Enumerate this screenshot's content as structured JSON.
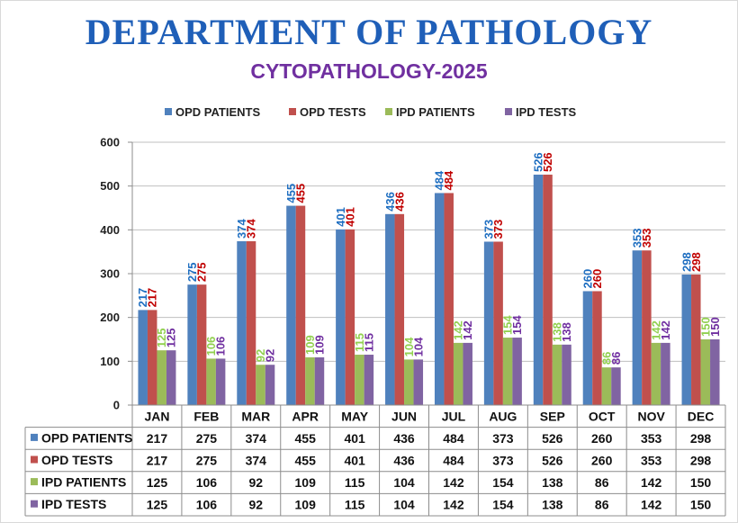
{
  "page": {
    "title": "DEPARTMENT OF PATHOLOGY",
    "subtitle": "CYTOPATHOLOGY-2025"
  },
  "chart_data": {
    "type": "bar",
    "title": "CYTOPATHOLOGY-2025",
    "xlabel": "",
    "ylabel": "",
    "ylim": [
      0,
      600
    ],
    "yticks": [
      0,
      100,
      200,
      300,
      400,
      500,
      600
    ],
    "grid": true,
    "legend": "top",
    "data_table": true,
    "categories": [
      "JAN",
      "FEB",
      "MAR",
      "APR",
      "MAY",
      "JUN",
      "JUL",
      "AUG",
      "SEP",
      "OCT",
      "NOV",
      "DEC"
    ],
    "series": [
      {
        "name": "OPD PATIENTS",
        "color": "#4f81bd",
        "label_color": "#1f6fc1",
        "values": [
          217,
          275,
          374,
          455,
          401,
          436,
          484,
          373,
          526,
          260,
          353,
          298
        ]
      },
      {
        "name": "OPD TESTS",
        "color": "#c0504d",
        "label_color": "#c00000",
        "values": [
          217,
          275,
          374,
          455,
          401,
          436,
          484,
          373,
          526,
          260,
          353,
          298
        ]
      },
      {
        "name": "IPD PATIENTS",
        "color": "#9bbb59",
        "label_color": "#92d050",
        "values": [
          125,
          106,
          92,
          109,
          115,
          104,
          142,
          154,
          138,
          86,
          142,
          150
        ]
      },
      {
        "name": "IPD TESTS",
        "color": "#8064a2",
        "label_color": "#7030a0",
        "values": [
          125,
          106,
          92,
          109,
          115,
          104,
          142,
          154,
          138,
          86,
          142,
          150
        ]
      }
    ]
  }
}
